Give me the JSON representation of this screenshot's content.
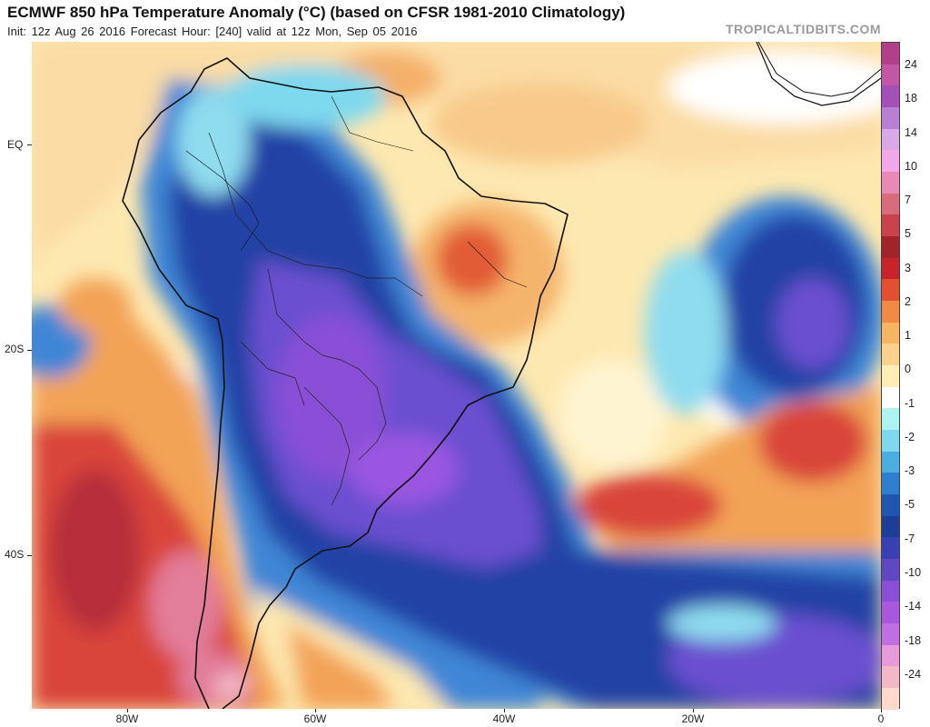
{
  "header": {
    "title": "ECMWF 850 hPa Temperature Anomaly (°C) (based on CFSR 1981-2010 Climatology)",
    "subtitle": "Init: 12z Aug 26 2016   Forecast Hour: [240]   valid at 12z Mon, Sep 05 2016",
    "credit": "TROPICALTIDBITS.COM"
  },
  "axes": {
    "lat_labels": [
      "EQ",
      "20S",
      "40S"
    ],
    "lon_labels": [
      "80W",
      "60W",
      "40W",
      "20W",
      "0"
    ]
  },
  "legend": {
    "labels": [
      "24",
      "18",
      "14",
      "10",
      "7",
      "5",
      "3",
      "2",
      "1",
      "0",
      "-1",
      "-2",
      "-3",
      "-5",
      "-7",
      "-10",
      "-14",
      "-18",
      "-24"
    ],
    "colors": [
      "#b23f8a",
      "#c357a6",
      "#a54fb9",
      "#b97fd4",
      "#d9a8e6",
      "#f2a7e8",
      "#e78ab4",
      "#d96c7c",
      "#c9424c",
      "#a3232a",
      "#c8232b",
      "#e2502f",
      "#f08a44",
      "#f7b463",
      "#fad28e",
      "#fdeeb6",
      "#ffffff",
      "#aef3f0",
      "#7ed8ee",
      "#4aaee0",
      "#2e7fcf",
      "#1f56b1",
      "#1d3d97",
      "#3a3fb3",
      "#6048c2",
      "#8a4fd6",
      "#a957de",
      "#c06fe0",
      "#e69ad8",
      "#f3b8c8",
      "#fcd9cc"
    ]
  },
  "map": {
    "region": "South America and South Atlantic",
    "colors": {
      "ocean_white": "#ffffff",
      "warm_light": "#fde8b0",
      "warm_orange": "#f3a356",
      "warm_red": "#d9443a",
      "warm_deep": "#b82f3b",
      "warm_pink": "#e27d9a",
      "cool_cyan": "#8fdcef",
      "cool_blue": "#3f86d6",
      "cool_navy": "#2443a6",
      "cool_purple": "#6a4fd0",
      "cool_violet": "#9a56e0",
      "coast": "#111111"
    }
  }
}
